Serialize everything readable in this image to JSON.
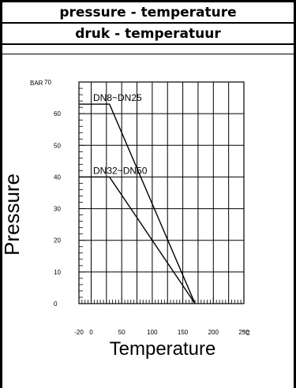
{
  "header": {
    "title_en": "pressure - temperature",
    "title_nl": "druk - temperatuur"
  },
  "chart_data": {
    "type": "line",
    "xlabel": "Temperature",
    "ylabel": "Pressure",
    "y_unit": "BAR",
    "x_unit": "°C",
    "xlim": [
      -20,
      250
    ],
    "ylim": [
      0,
      70
    ],
    "x_ticks": [
      "-20",
      "0",
      "50",
      "100",
      "150",
      "200",
      "250"
    ],
    "y_ticks": [
      "0",
      "10",
      "20",
      "30",
      "40",
      "50",
      "60",
      "70"
    ],
    "grid": true,
    "series": [
      {
        "name": "DN8~DN25",
        "x": [
          -20,
          30,
          170
        ],
        "y": [
          63,
          63,
          0
        ]
      },
      {
        "name": "DN32~DN50",
        "x": [
          -20,
          30,
          170
        ],
        "y": [
          40,
          40,
          0
        ]
      }
    ]
  }
}
